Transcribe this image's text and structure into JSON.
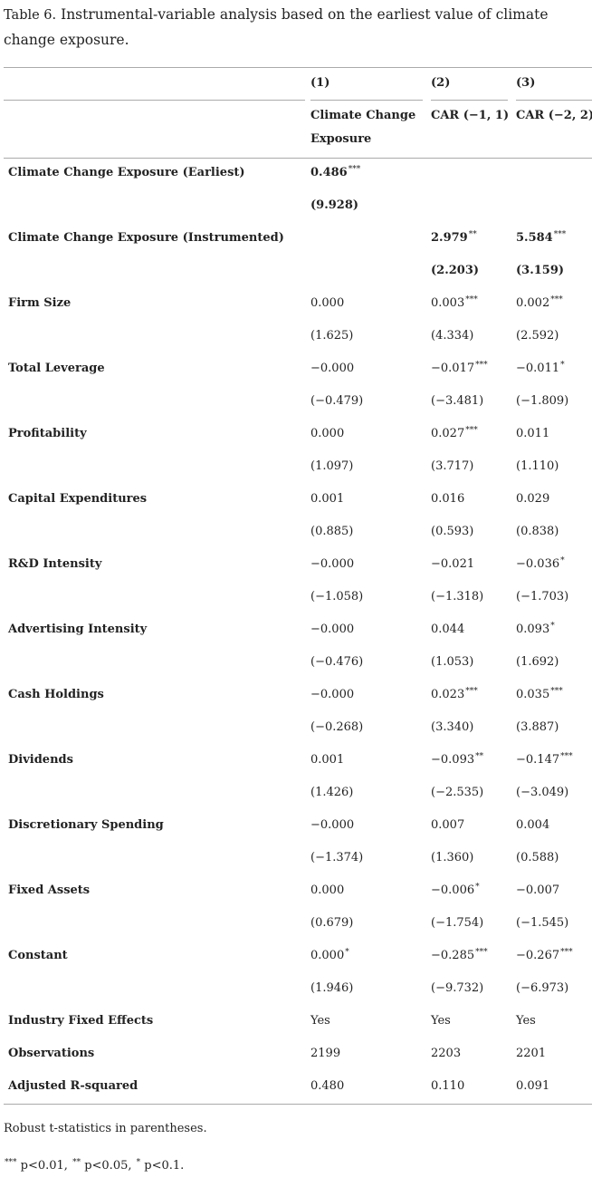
{
  "caption": {
    "label": "Table 6.",
    "text": "Instrumental-variable analysis based on the earliest value of climate change exposure."
  },
  "columns": [
    {
      "num": "(1)",
      "name_l1": "Climate Change",
      "name_l2": "Exposure"
    },
    {
      "num": "(2)",
      "name_l1": "CAR (−1, 1)",
      "name_l2": ""
    },
    {
      "num": "(3)",
      "name_l1": "CAR (−2, 2)",
      "name_l2": ""
    }
  ],
  "rows": [
    {
      "label": "Climate Change Exposure (Earliest)",
      "bold_values": true,
      "c1": "0.486",
      "s1": "***",
      "t1": "(9.928)",
      "c2": "",
      "s2": "",
      "t2": "",
      "c3": "",
      "s3": "",
      "t3": ""
    },
    {
      "label": "Climate Change Exposure (Instrumented)",
      "bold_values": true,
      "c1": "",
      "s1": "",
      "t1": "",
      "c2": "2.979",
      "s2": "**",
      "t2": "(2.203)",
      "c3": "5.584",
      "s3": "***",
      "t3": "(3.159)"
    },
    {
      "label": "Firm Size",
      "c1": "0.000",
      "s1": "",
      "t1": "(1.625)",
      "c2": "0.003",
      "s2": "***",
      "t2": "(4.334)",
      "c3": "0.002",
      "s3": "***",
      "t3": "(2.592)"
    },
    {
      "label": "Total Leverage",
      "c1": "−0.000",
      "s1": "",
      "t1": "(−0.479)",
      "c2": "−0.017",
      "s2": "***",
      "t2": "(−3.481)",
      "c3": "−0.011",
      "s3": "*",
      "t3": "(−1.809)"
    },
    {
      "label": "Profitability",
      "c1": "0.000",
      "s1": "",
      "t1": "(1.097)",
      "c2": "0.027",
      "s2": "***",
      "t2": "(3.717)",
      "c3": "0.011",
      "s3": "",
      "t3": "(1.110)"
    },
    {
      "label": "Capital Expenditures",
      "c1": "0.001",
      "s1": "",
      "t1": "(0.885)",
      "c2": "0.016",
      "s2": "",
      "t2": "(0.593)",
      "c3": "0.029",
      "s3": "",
      "t3": "(0.838)"
    },
    {
      "label": "R&D Intensity",
      "c1": "−0.000",
      "s1": "",
      "t1": "(−1.058)",
      "c2": "−0.021",
      "s2": "",
      "t2": "(−1.318)",
      "c3": "−0.036",
      "s3": "*",
      "t3": "(−1.703)"
    },
    {
      "label": "Advertising Intensity",
      "c1": "−0.000",
      "s1": "",
      "t1": "(−0.476)",
      "c2": "0.044",
      "s2": "",
      "t2": "(1.053)",
      "c3": "0.093",
      "s3": "*",
      "t3": "(1.692)"
    },
    {
      "label": "Cash Holdings",
      "c1": "−0.000",
      "s1": "",
      "t1": "(−0.268)",
      "c2": "0.023",
      "s2": "***",
      "t2": "(3.340)",
      "c3": "0.035",
      "s3": "***",
      "t3": "(3.887)"
    },
    {
      "label": "Dividends",
      "c1": "0.001",
      "s1": "",
      "t1": "(1.426)",
      "c2": "−0.093",
      "s2": "**",
      "t2": "(−2.535)",
      "c3": "−0.147",
      "s3": "***",
      "t3": "(−3.049)"
    },
    {
      "label": "Discretionary Spending",
      "c1": "−0.000",
      "s1": "",
      "t1": "(−1.374)",
      "c2": "0.007",
      "s2": "",
      "t2": "(1.360)",
      "c3": "0.004",
      "s3": "",
      "t3": "(0.588)"
    },
    {
      "label": "Fixed Assets",
      "c1": "0.000",
      "s1": "",
      "t1": "(0.679)",
      "c2": "−0.006",
      "s2": "*",
      "t2": "(−1.754)",
      "c3": "−0.007",
      "s3": "",
      "t3": "(−1.545)"
    },
    {
      "label": "Constant",
      "c1": "0.000",
      "s1": "*",
      "t1": "(1.946)",
      "c2": "−0.285",
      "s2": "***",
      "t2": "(−9.732)",
      "c3": "−0.267",
      "s3": "***",
      "t3": "(−6.973)"
    }
  ],
  "footer_rows": [
    {
      "label": "Industry Fixed Effects",
      "c1": "Yes",
      "c2": "Yes",
      "c3": "Yes"
    },
    {
      "label": "Observations",
      "c1": "2199",
      "c2": "2203",
      "c3": "2201"
    },
    {
      "label": "Adjusted R-squared",
      "c1": "0.480",
      "c2": "0.110",
      "c3": "0.091"
    }
  ],
  "notes": {
    "robust": "Robust t-statistics in parentheses.",
    "sig_1": "***",
    "sig_1_text": " p<0.01, ",
    "sig_2": "**",
    "sig_2_text": " p<0.05, ",
    "sig_3": "*",
    "sig_3_text": " p<0.1."
  }
}
